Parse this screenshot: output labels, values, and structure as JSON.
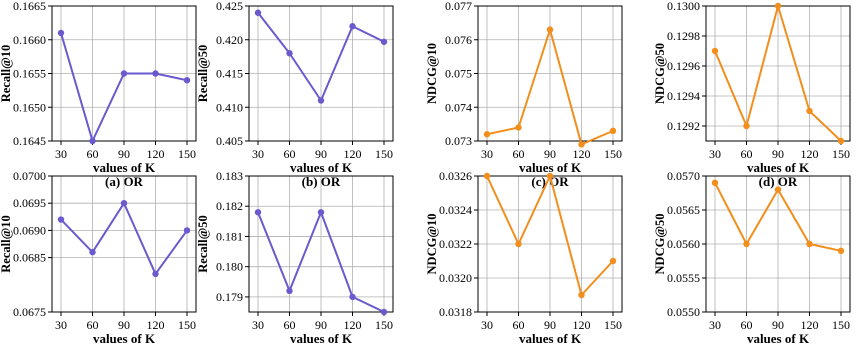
{
  "chart_data": [
    {
      "type": "line",
      "panel": "a",
      "caption": "(a) OR",
      "xlabel": "values of K",
      "ylabel": "Recall@10",
      "categories": [
        "30",
        "60",
        "90",
        "120",
        "150"
      ],
      "values": [
        0.1661,
        0.1645,
        0.1655,
        0.1655,
        0.1654
      ],
      "ylim": [
        0.1645,
        0.1665
      ],
      "yticks": [
        "0.1645",
        "0.1650",
        "0.1655",
        "0.1660",
        "0.1665"
      ],
      "color": "#6a5acd",
      "grid": true
    },
    {
      "type": "line",
      "panel": "b",
      "caption": "(b) OR",
      "xlabel": "values of K",
      "ylabel": "Recall@50",
      "categories": [
        "30",
        "60",
        "90",
        "120",
        "150"
      ],
      "values": [
        0.424,
        0.418,
        0.411,
        0.422,
        0.4197
      ],
      "ylim": [
        0.405,
        0.425
      ],
      "yticks": [
        "0.405",
        "0.410",
        "0.415",
        "0.420",
        "0.425"
      ],
      "color": "#6a5acd",
      "grid": true
    },
    {
      "type": "line",
      "panel": "c",
      "caption": "(c) OR",
      "xlabel": "values of K",
      "ylabel": "NDCG@10",
      "categories": [
        "30",
        "60",
        "90",
        "120",
        "150"
      ],
      "values": [
        0.0732,
        0.0734,
        0.0763,
        0.0729,
        0.0733
      ],
      "ylim": [
        0.073,
        0.077
      ],
      "yticks": [
        "0.073",
        "0.074",
        "0.075",
        "0.076",
        "0.077"
      ],
      "color": "#f28e1c",
      "grid": true
    },
    {
      "type": "line",
      "panel": "d",
      "caption": "(d) OR",
      "xlabel": "values of K",
      "ylabel": "NDCG@50",
      "categories": [
        "30",
        "60",
        "90",
        "120",
        "150"
      ],
      "values": [
        0.1297,
        0.1292,
        0.13,
        0.1293,
        0.1291
      ],
      "ylim": [
        0.1291,
        0.13
      ],
      "yticks": [
        "0.1292",
        "0.1294",
        "0.1296",
        "0.1298",
        "0.1300"
      ],
      "color": "#f28e1c",
      "grid": true
    },
    {
      "type": "line",
      "panel": "e",
      "caption": "(e) Pantry",
      "xlabel": "values of K",
      "ylabel": "Recall@10",
      "categories": [
        "30",
        "60",
        "90",
        "120",
        "150"
      ],
      "values": [
        0.0692,
        0.0686,
        0.0695,
        0.0682,
        0.069
      ],
      "ylim": [
        0.0675,
        0.07
      ],
      "yticks": [
        "0.0675",
        "0.0685",
        "0.0690",
        "0.0695",
        "0.0700"
      ],
      "color": "#6a5acd",
      "grid": true
    },
    {
      "type": "line",
      "panel": "f",
      "caption": "(f) Pantry",
      "xlabel": "values of K",
      "ylabel": "Recall@50",
      "categories": [
        "30",
        "60",
        "90",
        "120",
        "150"
      ],
      "values": [
        0.1818,
        0.1792,
        0.1818,
        0.179,
        0.1785
      ],
      "ylim": [
        0.1785,
        0.183
      ],
      "yticks": [
        "0.179",
        "0.180",
        "0.181",
        "0.182",
        "0.183"
      ],
      "color": "#6a5acd",
      "grid": true
    },
    {
      "type": "line",
      "panel": "g",
      "caption": "(g) Pantry",
      "xlabel": "values of K",
      "ylabel": "NDCG@10",
      "categories": [
        "30",
        "60",
        "90",
        "120",
        "150"
      ],
      "values": [
        0.0326,
        0.0322,
        0.0326,
        0.0319,
        0.0321
      ],
      "ylim": [
        0.0318,
        0.0326
      ],
      "yticks": [
        "0.0318",
        "0.0320",
        "0.0322",
        "0.0324",
        "0.0326"
      ],
      "color": "#f28e1c",
      "grid": true
    },
    {
      "type": "line",
      "panel": "h",
      "caption": "(h) Pantry",
      "xlabel": "values of K",
      "ylabel": "NDCG@50",
      "categories": [
        "30",
        "60",
        "90",
        "120",
        "150"
      ],
      "values": [
        0.0569,
        0.056,
        0.0568,
        0.056,
        0.0559
      ],
      "ylim": [
        0.055,
        0.057
      ],
      "yticks": [
        "0.0550",
        "0.0555",
        "0.0560",
        "0.0565",
        "0.0570"
      ],
      "color": "#f28e1c",
      "grid": true
    }
  ]
}
